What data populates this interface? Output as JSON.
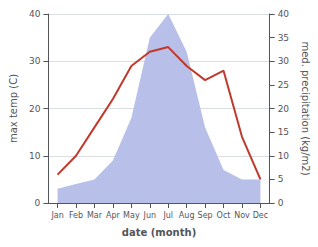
{
  "chart_data": {
    "type": "line",
    "xlabel": "date (month)",
    "ylabel": "max temp (C)",
    "y2label": "med. precipitation (kg/m2)",
    "categories": [
      "Jan",
      "Feb",
      "Mar",
      "Apr",
      "May",
      "Jun",
      "Jul",
      "Aug",
      "Sep",
      "Oct",
      "Nov",
      "Dec"
    ],
    "series": [
      {
        "type": "area",
        "axis": "y2",
        "color": "#b8bfe8",
        "values": [
          3,
          4,
          5,
          9,
          18,
          35,
          40,
          32,
          16,
          7,
          5,
          5
        ]
      },
      {
        "type": "line",
        "color": "#c0392b",
        "values": [
          6,
          10,
          16,
          22,
          29,
          32,
          33,
          29,
          26,
          28,
          14,
          5
        ]
      }
    ],
    "ylim": [
      0,
      40
    ],
    "yticks": [
      0,
      10,
      20,
      30,
      40
    ],
    "y2lim": [
      0,
      40
    ],
    "y2ticks": [
      0,
      5,
      10,
      15,
      20,
      25,
      30,
      35,
      40
    ],
    "grid": true
  }
}
